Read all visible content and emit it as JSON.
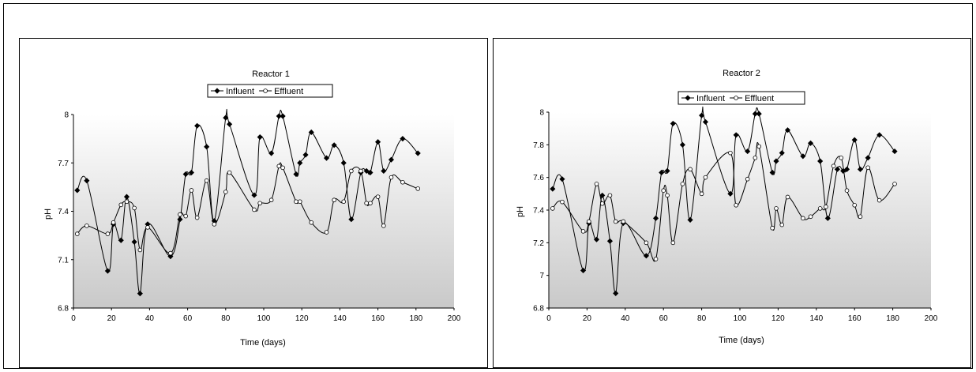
{
  "chart_data": [
    {
      "type": "line",
      "title": "Reactor 1",
      "xlabel": "Time (days)",
      "ylabel": "pH",
      "xlim": [
        0,
        200
      ],
      "ylim": [
        6.8,
        8.0
      ],
      "xticks": [
        "0",
        "20",
        "40",
        "60",
        "80",
        "100",
        "120",
        "140",
        "160",
        "180",
        "200"
      ],
      "yticks": [
        "6.8",
        "7.1",
        "7.4",
        "7.7",
        "8"
      ],
      "legend_position": "top-center",
      "grid": false,
      "series": [
        {
          "name": "Influent",
          "marker": "filled-diamond",
          "color": "#000000",
          "x": [
            2,
            7,
            18,
            21,
            25,
            28,
            32,
            35,
            39,
            51,
            56,
            59,
            62,
            65,
            70,
            74,
            80,
            82,
            95,
            98,
            104,
            108,
            110,
            117,
            119,
            122,
            125,
            133,
            137,
            142,
            146,
            151,
            154,
            156,
            160,
            163,
            167,
            173,
            181
          ],
          "y": [
            7.53,
            7.59,
            7.03,
            7.32,
            7.22,
            7.49,
            7.21,
            6.89,
            7.32,
            7.12,
            7.35,
            7.63,
            7.64,
            7.93,
            7.8,
            7.34,
            7.98,
            7.94,
            7.5,
            7.86,
            7.76,
            7.99,
            7.99,
            7.63,
            7.7,
            7.75,
            7.89,
            7.73,
            7.81,
            7.7,
            7.35,
            7.64,
            7.65,
            7.64,
            7.83,
            7.65,
            7.72,
            7.85,
            7.76
          ]
        },
        {
          "name": "Effluent",
          "marker": "open-circle",
          "color": "#000000",
          "x": [
            2,
            7,
            18,
            21,
            25,
            28,
            32,
            35,
            39,
            51,
            56,
            59,
            62,
            65,
            70,
            74,
            80,
            82,
            95,
            98,
            104,
            108,
            110,
            117,
            119,
            125,
            133,
            137,
            142,
            146,
            151,
            154,
            156,
            160,
            163,
            167,
            173,
            181
          ],
          "y": [
            7.26,
            7.31,
            7.26,
            7.33,
            7.44,
            7.46,
            7.42,
            7.16,
            7.3,
            7.14,
            7.38,
            7.37,
            7.53,
            7.36,
            7.59,
            7.32,
            7.52,
            7.64,
            7.41,
            7.45,
            7.47,
            7.68,
            7.67,
            7.46,
            7.46,
            7.33,
            7.27,
            7.47,
            7.46,
            7.65,
            7.65,
            7.45,
            7.45,
            7.49,
            7.31,
            7.61,
            7.58,
            7.54
          ]
        }
      ]
    },
    {
      "type": "line",
      "title": "Reactor 2",
      "xlabel": "Time (days)",
      "ylabel": "pH",
      "xlim": [
        0,
        200
      ],
      "ylim": [
        6.8,
        8.0
      ],
      "xticks": [
        "0",
        "20",
        "40",
        "60",
        "80",
        "100",
        "120",
        "140",
        "160",
        "180",
        "200"
      ],
      "yticks": [
        "6.8",
        "7",
        "7.2",
        "7.4",
        "7.6",
        "7.8",
        "8"
      ],
      "legend_position": "top-center",
      "grid": false,
      "series": [
        {
          "name": "Influent",
          "marker": "filled-diamond",
          "color": "#000000",
          "x": [
            2,
            7,
            18,
            21,
            25,
            28,
            32,
            35,
            39,
            51,
            56,
            59,
            62,
            65,
            70,
            74,
            80,
            82,
            95,
            98,
            104,
            108,
            110,
            117,
            119,
            122,
            125,
            133,
            137,
            142,
            146,
            151,
            154,
            156,
            160,
            163,
            167,
            173,
            181
          ],
          "y": [
            7.53,
            7.59,
            7.03,
            7.32,
            7.22,
            7.49,
            7.21,
            6.89,
            7.32,
            7.12,
            7.35,
            7.63,
            7.64,
            7.93,
            7.8,
            7.34,
            7.98,
            7.94,
            7.5,
            7.86,
            7.76,
            7.99,
            7.99,
            7.63,
            7.7,
            7.75,
            7.89,
            7.73,
            7.81,
            7.7,
            7.35,
            7.65,
            7.64,
            7.65,
            7.83,
            7.65,
            7.72,
            7.86,
            7.76
          ]
        },
        {
          "name": "Effluent",
          "marker": "open-circle",
          "color": "#000000",
          "x": [
            2,
            7,
            18,
            21,
            25,
            28,
            32,
            35,
            39,
            51,
            56,
            60,
            62,
            65,
            70,
            74,
            80,
            82,
            95,
            98,
            104,
            108,
            110,
            117,
            119,
            122,
            125,
            133,
            137,
            142,
            145,
            149,
            153,
            156,
            160,
            163,
            167,
            173,
            181
          ],
          "y": [
            7.41,
            7.45,
            7.27,
            7.33,
            7.56,
            7.44,
            7.49,
            7.33,
            7.33,
            7.2,
            7.1,
            7.52,
            7.49,
            7.2,
            7.56,
            7.65,
            7.5,
            7.6,
            7.75,
            7.43,
            7.59,
            7.72,
            7.79,
            7.29,
            7.41,
            7.31,
            7.48,
            7.35,
            7.36,
            7.41,
            7.42,
            7.67,
            7.72,
            7.52,
            7.43,
            7.36,
            7.66,
            7.46,
            7.56
          ]
        }
      ]
    }
  ]
}
